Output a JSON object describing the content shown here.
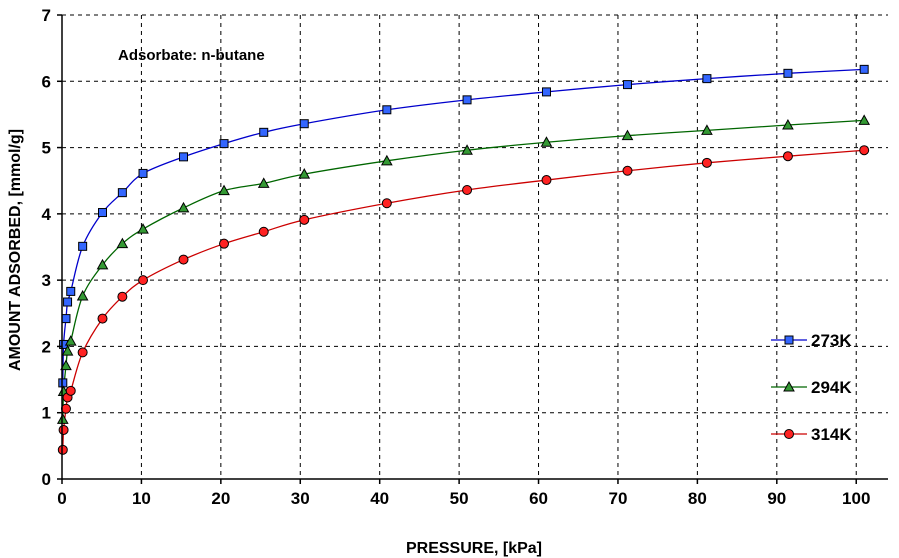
{
  "chart_data": {
    "type": "line",
    "title": "",
    "xlabel": "PRESSURE, [kPa]",
    "ylabel": "AMOUNT ADSORBED, [mmol/g]",
    "xlim": [
      0,
      104
    ],
    "ylim": [
      0,
      7
    ],
    "xticks": [
      0,
      10,
      20,
      30,
      40,
      50,
      60,
      70,
      80,
      90,
      100
    ],
    "yticks": [
      0,
      1,
      2,
      3,
      4,
      5,
      6,
      7
    ],
    "grid": true,
    "legend_position": "right",
    "annotation": "Adsorbate: n-butane",
    "series": [
      {
        "name": "273K",
        "color": "#0000cc",
        "marker_fill": "#3366ff",
        "marker": "square",
        "x": [
          0.1,
          0.2,
          0.5,
          0.7,
          1.1,
          2.6,
          5.1,
          7.6,
          10.2,
          15.3,
          20.4,
          25.4,
          30.5,
          40.9,
          51.0,
          61.0,
          71.2,
          81.2,
          91.4,
          101.0
        ],
        "y": [
          1.45,
          2.03,
          2.42,
          2.67,
          2.83,
          3.51,
          4.02,
          4.32,
          4.61,
          4.86,
          5.06,
          5.23,
          5.36,
          5.57,
          5.72,
          5.84,
          5.95,
          6.04,
          6.12,
          6.18
        ]
      },
      {
        "name": "294K",
        "color": "#006600",
        "marker_fill": "#339933",
        "marker": "triangle",
        "x": [
          0.1,
          0.2,
          0.5,
          0.7,
          1.1,
          2.6,
          5.1,
          7.6,
          10.2,
          15.3,
          20.4,
          25.4,
          30.5,
          40.9,
          51.0,
          61.0,
          71.2,
          81.2,
          91.4,
          101.0
        ],
        "y": [
          0.9,
          1.32,
          1.71,
          1.93,
          2.08,
          2.76,
          3.23,
          3.55,
          3.77,
          4.09,
          4.35,
          4.46,
          4.6,
          4.8,
          4.96,
          5.08,
          5.18,
          5.26,
          5.34,
          5.41
        ]
      },
      {
        "name": "314K",
        "color": "#cc0000",
        "marker_fill": "#ff2222",
        "marker": "circle",
        "x": [
          0.1,
          0.2,
          0.5,
          0.7,
          1.1,
          2.6,
          5.1,
          7.6,
          10.2,
          15.3,
          20.4,
          25.4,
          30.5,
          40.9,
          51.0,
          61.0,
          71.2,
          81.2,
          91.4,
          101.0
        ],
        "y": [
          0.44,
          0.74,
          1.06,
          1.23,
          1.33,
          1.91,
          2.42,
          2.75,
          3.0,
          3.31,
          3.55,
          3.73,
          3.91,
          4.16,
          4.36,
          4.51,
          4.65,
          4.77,
          4.87,
          4.96
        ]
      }
    ]
  }
}
